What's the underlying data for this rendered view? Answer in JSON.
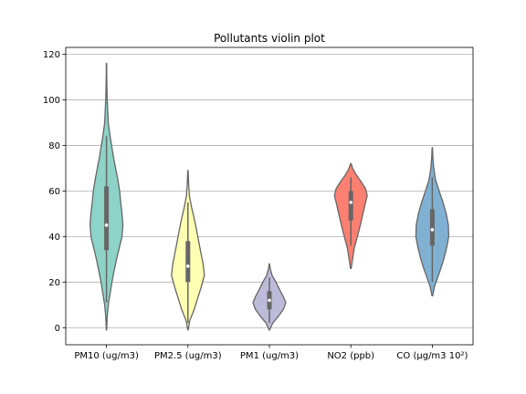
{
  "chart_data": {
    "type": "violin",
    "title": "Pollutants violin plot",
    "xlabel": "",
    "ylabel": "",
    "ylim": [
      -7.5,
      123
    ],
    "yticks": [
      0,
      20,
      40,
      60,
      80,
      100,
      120
    ],
    "grid": "y",
    "categories": [
      "PM10 (ug/m3)",
      "PM2.5 (ug/m3)",
      "PM1 (ug/m3)",
      "NO2 (ppb)",
      "CO (µg/m3 10²)"
    ],
    "series": [
      {
        "category": "PM10 (ug/m3)",
        "color": "#8dd3c7",
        "min": -1,
        "max": 116,
        "q1": 34,
        "median": 45,
        "q3": 62,
        "whisker_low": 11,
        "whisker_high": 84,
        "density": [
          [
            -1,
            0.01
          ],
          [
            5,
            0.04
          ],
          [
            10,
            0.1
          ],
          [
            15,
            0.2
          ],
          [
            20,
            0.3
          ],
          [
            25,
            0.42
          ],
          [
            30,
            0.55
          ],
          [
            35,
            0.7
          ],
          [
            40,
            0.85
          ],
          [
            45,
            0.9
          ],
          [
            50,
            0.85
          ],
          [
            55,
            0.78
          ],
          [
            60,
            0.72
          ],
          [
            65,
            0.62
          ],
          [
            70,
            0.5
          ],
          [
            75,
            0.38
          ],
          [
            80,
            0.28
          ],
          [
            85,
            0.18
          ],
          [
            90,
            0.1
          ],
          [
            95,
            0.07
          ],
          [
            100,
            0.04
          ],
          [
            105,
            0.025
          ],
          [
            110,
            0.015
          ],
          [
            116,
            0.01
          ]
        ]
      },
      {
        "category": "PM2.5 (ug/m3)",
        "color": "#ffffb3",
        "min": -1,
        "max": 69,
        "q1": 20,
        "median": 27,
        "q3": 38,
        "whisker_low": 2,
        "whisker_high": 55,
        "density": [
          [
            -1,
            0.01
          ],
          [
            3,
            0.1
          ],
          [
            8,
            0.35
          ],
          [
            13,
            0.55
          ],
          [
            18,
            0.75
          ],
          [
            23,
            0.92
          ],
          [
            28,
            0.85
          ],
          [
            33,
            0.72
          ],
          [
            38,
            0.6
          ],
          [
            43,
            0.48
          ],
          [
            48,
            0.35
          ],
          [
            53,
            0.2
          ],
          [
            58,
            0.08
          ],
          [
            63,
            0.04
          ],
          [
            69,
            0.01
          ]
        ]
      },
      {
        "category": "PM1 (ug/m3)",
        "color": "#bebada",
        "min": -1,
        "max": 28,
        "q1": 8,
        "median": 12,
        "q3": 16,
        "whisker_low": 2,
        "whisker_high": 22,
        "density": [
          [
            -1,
            0.02
          ],
          [
            2,
            0.2
          ],
          [
            5,
            0.55
          ],
          [
            8,
            0.85
          ],
          [
            11,
            1.0
          ],
          [
            14,
            0.82
          ],
          [
            17,
            0.6
          ],
          [
            20,
            0.4
          ],
          [
            23,
            0.16
          ],
          [
            26,
            0.05
          ],
          [
            28,
            0.01
          ]
        ]
      },
      {
        "category": "NO2 (ppb)",
        "color": "#fb8072",
        "min": 26,
        "max": 72,
        "q1": 47,
        "median": 55,
        "q3": 60,
        "whisker_low": 36,
        "whisker_high": 66,
        "density": [
          [
            26,
            0.02
          ],
          [
            30,
            0.1
          ],
          [
            35,
            0.2
          ],
          [
            40,
            0.38
          ],
          [
            45,
            0.55
          ],
          [
            50,
            0.7
          ],
          [
            55,
            0.85
          ],
          [
            58,
            0.95
          ],
          [
            61,
            0.85
          ],
          [
            64,
            0.6
          ],
          [
            67,
            0.32
          ],
          [
            70,
            0.1
          ],
          [
            72,
            0.02
          ]
        ]
      },
      {
        "category": "CO (µg/m3 10²)",
        "color": "#80b1d3",
        "min": 14,
        "max": 79,
        "q1": 36,
        "median": 43,
        "q3": 52,
        "whisker_low": 20,
        "whisker_high": 66,
        "density": [
          [
            14,
            0.02
          ],
          [
            18,
            0.12
          ],
          [
            22,
            0.3
          ],
          [
            26,
            0.48
          ],
          [
            30,
            0.64
          ],
          [
            35,
            0.8
          ],
          [
            40,
            0.92
          ],
          [
            45,
            0.9
          ],
          [
            50,
            0.78
          ],
          [
            55,
            0.6
          ],
          [
            60,
            0.38
          ],
          [
            65,
            0.18
          ],
          [
            70,
            0.08
          ],
          [
            75,
            0.03
          ],
          [
            79,
            0.01
          ]
        ]
      }
    ],
    "style": {
      "edge_color": "#666666",
      "grid_color": "#b0b0b0",
      "box_color": "#666666",
      "median_color": "#ffffff"
    }
  }
}
